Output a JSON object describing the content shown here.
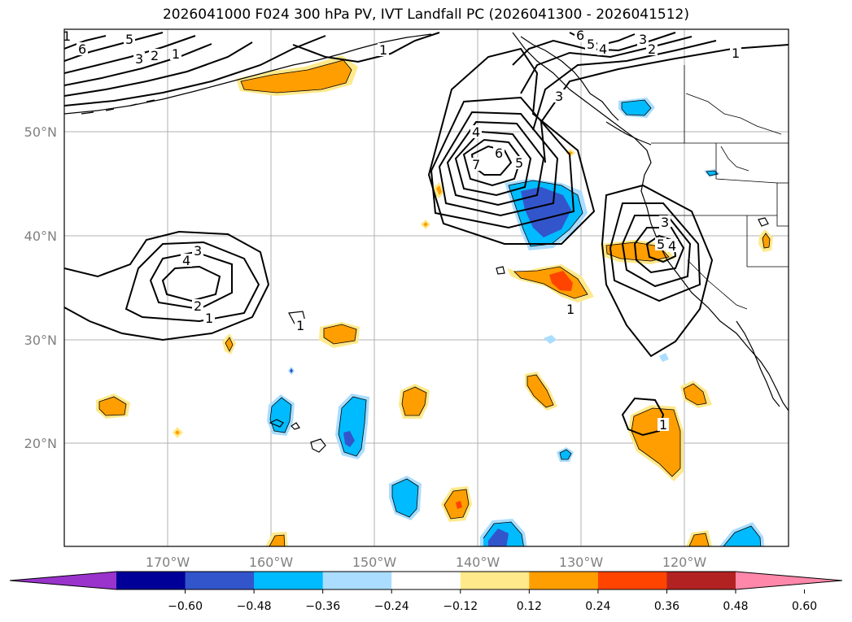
{
  "title": "2026041000 F024 300 hPa PV, IVT Landfall PC (2026041300 - 2026041512)",
  "axes": {
    "lat_labels": [
      "50°N",
      "40°N",
      "30°N",
      "20°N"
    ],
    "lon_labels": [
      "170°W",
      "160°W",
      "150°W",
      "140°W",
      "130°W",
      "120°W"
    ]
  },
  "colorbar": {
    "ticks": [
      "−0.60",
      "−0.48",
      "−0.36",
      "−0.24",
      "−0.12",
      "0.12",
      "0.24",
      "0.36",
      "0.48",
      "0.60"
    ],
    "colors": [
      "#9933cc",
      "#000099",
      "#3355cc",
      "#00bbff",
      "#aaddff",
      "#ffffff",
      "#ffe98a",
      "#ff9e00",
      "#ff4400",
      "#b22222",
      "#ff88aa"
    ]
  },
  "contour_labels": {
    "nw_6": "6",
    "nw_5": "5",
    "nw_3": "3",
    "nw_2": "2",
    "nw_1a": "1",
    "nw_1b": "1",
    "north_1": "1",
    "top_6": "6",
    "top_5": "5",
    "top_4": "4",
    "top_3": "3",
    "top_2": "2",
    "top_1": "1",
    "coast_3": "3",
    "low_4": "4",
    "low_6": "6",
    "low_5": "5",
    "low_7": "7",
    "west_3": "3",
    "west_4": "4",
    "west_2": "2",
    "west_1": "1",
    "small_1": "1",
    "east_3": "3",
    "east_5": "5",
    "east_4": "4",
    "mid_1": "1",
    "s_1": "1"
  }
}
